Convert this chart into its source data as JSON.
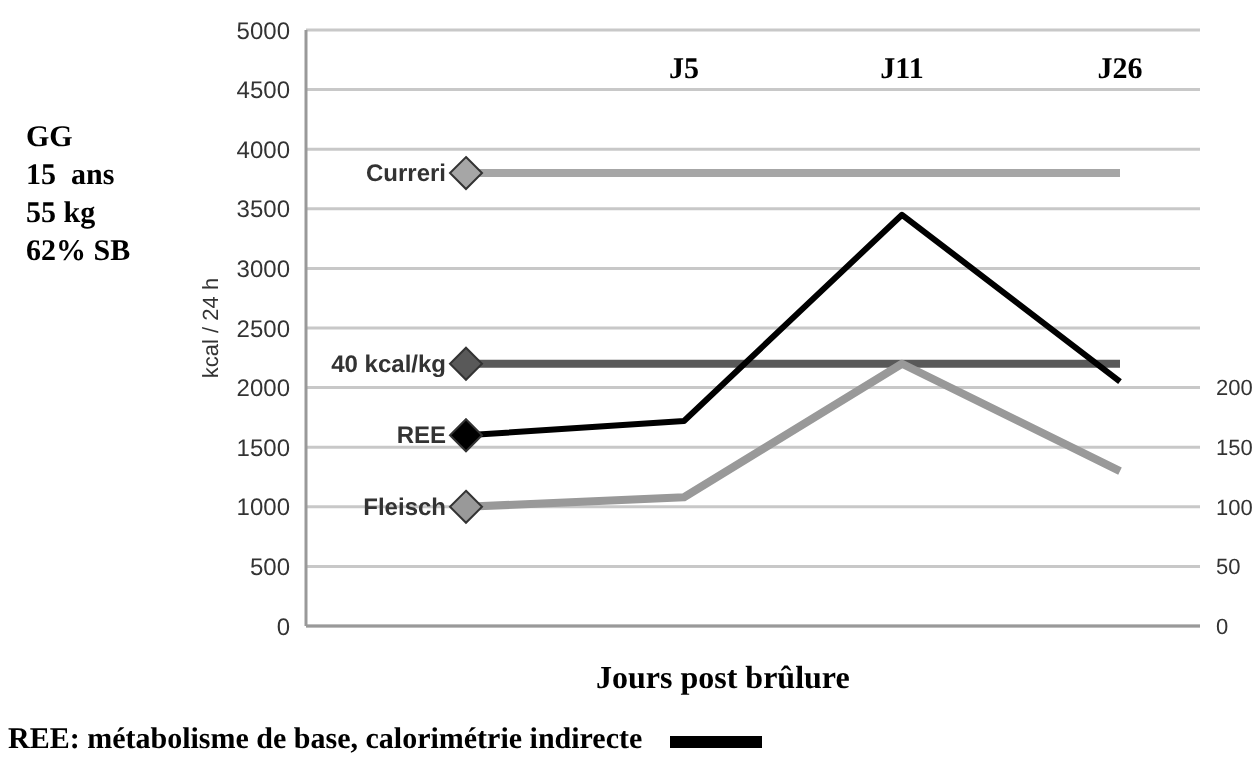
{
  "chart_data": {
    "type": "line",
    "xlabel": "Jours post brûlure",
    "ylabel": "kcal / 24 h",
    "categories": [
      null,
      "J5",
      "J11",
      "J26"
    ],
    "series": [
      {
        "name": "Curreri",
        "color": "#a6a6a6",
        "values": [
          3800,
          3800,
          3800,
          3800
        ]
      },
      {
        "name": "40 kcal/kg",
        "color": "#595959",
        "values": [
          2200,
          2200,
          2200,
          2200
        ]
      },
      {
        "name": "REE",
        "color": "#000000",
        "values": [
          1600,
          1720,
          3450,
          2050
        ]
      },
      {
        "name": "Fleisch",
        "color": "#999999",
        "values": [
          1000,
          1080,
          2200,
          1300
        ]
      }
    ],
    "ylim": [
      0,
      5000
    ],
    "yticks": [
      0,
      500,
      1000,
      1500,
      2000,
      2500,
      3000,
      3500,
      4000,
      4500,
      5000
    ],
    "y2lim": [
      0,
      500
    ],
    "y2ticks": [
      0,
      50,
      100,
      150,
      200
    ],
    "grid": "y",
    "legend": false,
    "line_style": "solid",
    "annotations": [
      "GG",
      "15  ans",
      "55 kg",
      "62% SB",
      "REE: métabolisme de base, calorimétrie indirecte"
    ]
  }
}
